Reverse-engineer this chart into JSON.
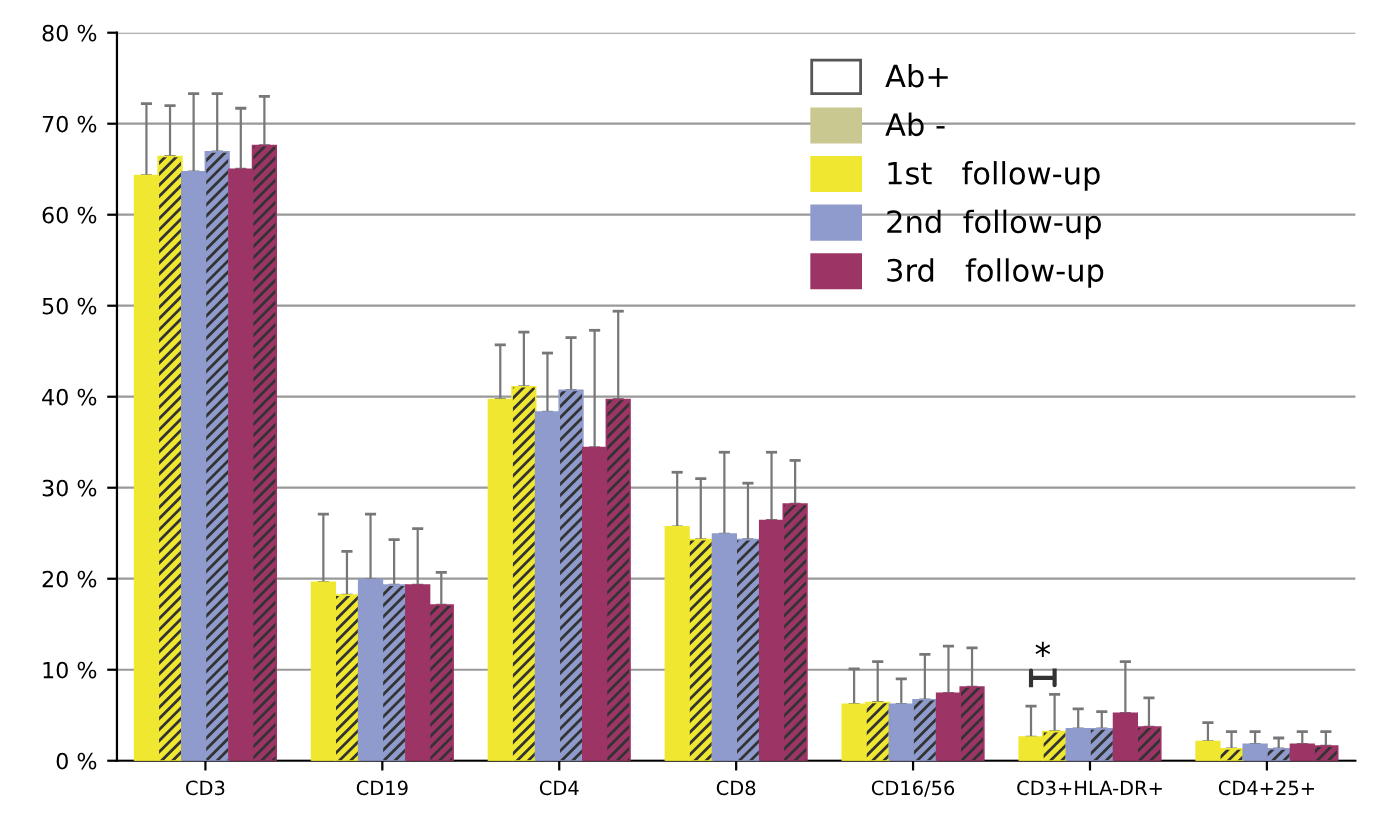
{
  "chart_data": {
    "type": "bar",
    "categories": [
      "CD3",
      "CD19",
      "CD4",
      "CD8",
      "CD16/56",
      "CD3+HLA-DR+",
      "CD4+25+"
    ],
    "series": [
      {
        "color": "#f0e830",
        "values": [
          64.3,
          19.6,
          39.7,
          25.7,
          6.2,
          2.6,
          2.1
        ],
        "errors": [
          7.9,
          7.5,
          6.0,
          6.0,
          3.9,
          3.4,
          2.1
        ]
      },
      {
        "color": "#f0e830",
        "values": [
          66.4,
          18.2,
          41.1,
          24.3,
          6.4,
          3.2,
          1.3
        ],
        "errors": [
          5.6,
          4.8,
          6.0,
          6.7,
          4.5,
          4.1,
          1.9
        ]
      },
      {
        "color": "#8e9bcc",
        "values": [
          64.7,
          19.9,
          38.3,
          24.9,
          6.2,
          3.5,
          1.8
        ],
        "errors": [
          8.6,
          7.2,
          6.5,
          9.0,
          2.8,
          2.2,
          1.4
        ]
      },
      {
        "color": "#8e9bcc",
        "values": [
          66.9,
          19.3,
          40.7,
          24.3,
          6.7,
          3.5,
          1.3
        ],
        "errors": [
          6.4,
          5.0,
          5.8,
          6.2,
          5.0,
          1.9,
          1.2
        ]
      },
      {
        "color": "#9c3566",
        "values": [
          65.0,
          19.3,
          34.4,
          26.4,
          7.4,
          5.2,
          1.8
        ],
        "errors": [
          6.7,
          6.2,
          12.9,
          7.5,
          5.2,
          5.7,
          1.4
        ]
      },
      {
        "color": "#9c3566",
        "values": [
          67.6,
          17.1,
          39.7,
          28.2,
          8.1,
          3.7,
          1.6
        ],
        "errors": [
          5.4,
          3.6,
          9.7,
          4.8,
          4.3,
          3.2,
          1.6
        ]
      }
    ],
    "ylim": [
      0,
      80
    ],
    "yticks": [
      {
        "value": 0,
        "label": "0 %"
      },
      {
        "value": 10,
        "label": "10 %"
      },
      {
        "value": 20,
        "label": "20 %"
      },
      {
        "value": 30,
        "label": "30 %"
      },
      {
        "value": 40,
        "label": "40 %"
      },
      {
        "value": 50,
        "label": "50 %"
      },
      {
        "value": 60,
        "label": "60 %"
      },
      {
        "value": 70,
        "label": "70 %"
      },
      {
        "value": 80,
        "label": "80 %"
      }
    ],
    "grid": "y",
    "annotations": [
      "Ab+",
      "Ab -",
      "1st   follow-up",
      "2nd  follow-up",
      "3rd   follow-up",
      "*"
    ]
  }
}
